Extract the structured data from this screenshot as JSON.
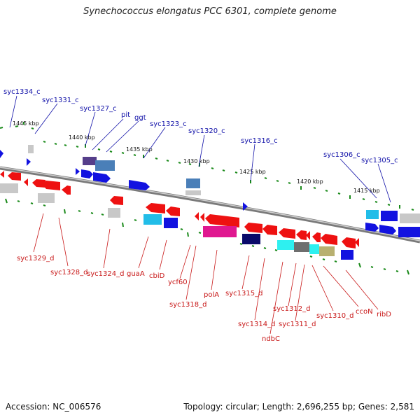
{
  "title": "Synechococcus elongatus PCC 6301, complete genome",
  "accession": "Accession: NC_006576",
  "topology": "Topology: circular; Length: 2,696,255 bp; Genes: 2,581",
  "colors": {
    "forward_gene": "#1212e0",
    "reverse_gene": "#ee1111",
    "backbone": "#888888",
    "tick": "#1a8a1a",
    "forward_label": "#1010a8",
    "reverse_label": "#c81818"
  },
  "kbp_labels": [
    "1445 kbp",
    "1440 kbp",
    "1435 kbp",
    "1430 kbp",
    "1425 kbp",
    "1420 kbp",
    "1415 kbp"
  ],
  "forward_labels": [
    "syc1334_c",
    "syc1331_c",
    "syc1327_c",
    "pit",
    "ggt",
    "syc1323_c",
    "syc1320_c",
    "syc1316_c",
    "syc1306_c",
    "syc1305_c"
  ],
  "reverse_labels": [
    "syc1329_d",
    "syc1328_d",
    "syc1324_d",
    "guaA",
    "cbiD",
    "ycf60",
    "syc1318_d",
    "polA",
    "syc1315_d",
    "syc1314_d",
    "ndbC",
    "syc1312_d",
    "syc1311_d",
    "syc1310_d",
    "ccoN",
    "ribD"
  ]
}
